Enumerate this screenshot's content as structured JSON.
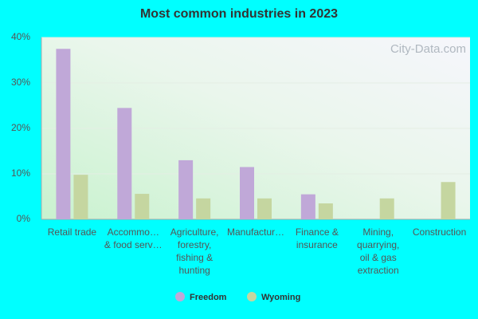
{
  "chart_data": {
    "type": "bar",
    "title": "Most common industries in 2023",
    "watermark": "City-Data.com",
    "categories": [
      [
        "Retail trade"
      ],
      [
        "Accommo…",
        "& food serv…"
      ],
      [
        "Agriculture,",
        "forestry,",
        "fishing &",
        "hunting"
      ],
      [
        "Manufactur…"
      ],
      [
        "Finance &",
        "insurance"
      ],
      [
        "Mining,",
        "quarrying,",
        "oil & gas",
        "extraction"
      ],
      [
        "Construction"
      ]
    ],
    "series": [
      {
        "name": "Freedom",
        "color": "#c0a8d8",
        "values": [
          37.5,
          24.5,
          13,
          11.5,
          5.5,
          0,
          0
        ]
      },
      {
        "name": "Wyoming",
        "color": "#c5d6a0",
        "values": [
          9.8,
          5.6,
          4.6,
          4.6,
          3.5,
          4.6,
          8.2
        ]
      }
    ],
    "ylim": [
      0,
      40
    ],
    "yticks": [
      {
        "value": 0,
        "label": "0%"
      },
      {
        "value": 10,
        "label": "10%"
      },
      {
        "value": 20,
        "label": "20%"
      },
      {
        "value": 30,
        "label": "30%"
      },
      {
        "value": 40,
        "label": "40%"
      }
    ],
    "grid": true
  }
}
